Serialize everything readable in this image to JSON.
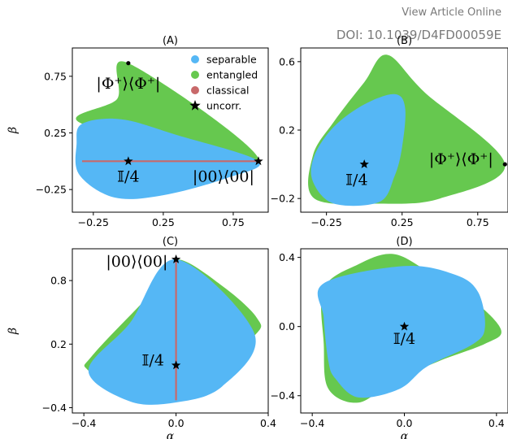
{
  "header": {
    "view_link": "View Article Online",
    "doi": "DOI: 10.1039/D4FD00059E"
  },
  "colors": {
    "separable": "#55b7f5",
    "entangled": "#66c84f",
    "classical": "#c8696a",
    "uncorr": "#000000"
  },
  "legend": {
    "items": [
      {
        "key": "separable",
        "label": "separable",
        "marker": "circle"
      },
      {
        "key": "entangled",
        "label": "entangled",
        "marker": "circle"
      },
      {
        "key": "classical",
        "label": "classical",
        "marker": "circle"
      },
      {
        "key": "uncorr",
        "label": "uncorr.",
        "marker": "star"
      }
    ]
  },
  "chart_data": [
    {
      "id": "A",
      "type": "area",
      "title": "(A)",
      "xlabel": "",
      "ylabel": "β",
      "xlim": [
        -0.4,
        1.0
      ],
      "ylim": [
        -0.45,
        1.0
      ],
      "xticks": [
        -0.25,
        0.25,
        0.75
      ],
      "xtick_labels": [
        "−0.25",
        "0.25",
        "0.75"
      ],
      "yticks": [
        -0.25,
        0.25,
        0.75
      ],
      "ytick_labels": [
        "−0.25",
        "0.25",
        "0.75"
      ],
      "regions": [
        {
          "series": "entangled",
          "points": [
            [
              0.0,
              0.866
            ],
            [
              0.93,
              0.0
            ],
            [
              -0.33,
              0.33
            ],
            [
              -0.08,
              0.55
            ]
          ]
        },
        {
          "series": "separable",
          "points": [
            [
              -0.33,
              0.33
            ],
            [
              -0.05,
              0.37
            ],
            [
              0.35,
              0.23
            ],
            [
              0.93,
              0.0
            ],
            [
              0.7,
              -0.15
            ],
            [
              0.25,
              -0.3
            ],
            [
              -0.1,
              -0.32
            ],
            [
              -0.35,
              -0.12
            ],
            [
              -0.37,
              0.15
            ]
          ]
        }
      ],
      "lines": [
        {
          "series": "classical",
          "points": [
            [
              -0.33,
              0.0
            ],
            [
              0.93,
              0.0
            ]
          ]
        }
      ],
      "stars": [
        [
          0.0,
          0.0
        ],
        [
          0.93,
          0.0
        ]
      ],
      "dots": [
        [
          0.0,
          0.866
        ]
      ],
      "labels": [
        {
          "text": "|Φ⁺⟩⟨Φ⁺|",
          "at": [
            0.0,
            0.64
          ]
        },
        {
          "text": "𝕀/4",
          "at": [
            0.0,
            -0.18
          ]
        },
        {
          "text": "|00⟩⟨00|",
          "at": [
            0.68,
            -0.18
          ]
        }
      ]
    },
    {
      "id": "B",
      "type": "area",
      "title": "(B)",
      "xlabel": "",
      "ylabel": "",
      "xlim": [
        -0.42,
        0.95
      ],
      "ylim": [
        -0.28,
        0.68
      ],
      "xticks": [
        -0.25,
        0.25,
        0.75
      ],
      "xtick_labels": [
        "−0.25",
        "0.25",
        "0.75"
      ],
      "yticks": [
        -0.2,
        0.2,
        0.6
      ],
      "ytick_labels": [
        "−0.2",
        "0.2",
        "0.6"
      ],
      "regions": [
        {
          "series": "entangled",
          "points": [
            [
              0.15,
              0.64
            ],
            [
              0.4,
              0.42
            ],
            [
              0.93,
              0.0
            ],
            [
              0.5,
              -0.2
            ],
            [
              0.1,
              -0.23
            ],
            [
              -0.33,
              -0.2
            ],
            [
              -0.34,
              0.05
            ],
            [
              -0.2,
              0.25
            ],
            [
              0.0,
              0.48
            ]
          ]
        },
        {
          "series": "separable",
          "points": [
            [
              0.2,
              0.41
            ],
            [
              0.27,
              0.33
            ],
            [
              0.25,
              0.1
            ],
            [
              0.2,
              -0.07
            ],
            [
              0.1,
              -0.22
            ],
            [
              -0.2,
              -0.23
            ],
            [
              -0.34,
              -0.1
            ],
            [
              -0.33,
              0.05
            ],
            [
              -0.2,
              0.22
            ],
            [
              0.0,
              0.35
            ]
          ]
        }
      ],
      "lines": [],
      "stars": [
        [
          0.0,
          0.0
        ]
      ],
      "dots": [
        [
          0.93,
          0.0
        ]
      ],
      "labels": [
        {
          "text": "𝕀/4",
          "at": [
            -0.05,
            -0.12
          ]
        },
        {
          "text": "|Φ⁺⟩⟨Φ⁺|",
          "at": [
            0.64,
            0.0
          ]
        }
      ]
    },
    {
      "id": "C",
      "type": "area",
      "title": "(C)",
      "xlabel": "α",
      "ylabel": "β",
      "xlim": [
        -0.45,
        0.4
      ],
      "ylim": [
        -0.45,
        1.1
      ],
      "xticks": [
        -0.4,
        0.0,
        0.4
      ],
      "xtick_labels": [
        "−0.4",
        "0.0",
        "0.4"
      ],
      "yticks": [
        -0.4,
        0.2,
        0.8
      ],
      "ytick_labels": [
        "−0.4",
        "0.2",
        "0.8"
      ],
      "regions": [
        {
          "series": "entangled",
          "points": [
            [
              0.0,
              1.0
            ],
            [
              0.2,
              0.75
            ],
            [
              0.35,
              0.45
            ],
            [
              0.34,
              0.28
            ],
            [
              0.1,
              -0.1
            ],
            [
              -0.2,
              -0.28
            ],
            [
              -0.38,
              -0.05
            ],
            [
              -0.36,
              0.1
            ],
            [
              -0.1,
              0.7
            ]
          ]
        },
        {
          "series": "separable",
          "points": [
            [
              0.0,
              1.0
            ],
            [
              0.34,
              0.3
            ],
            [
              0.2,
              -0.2
            ],
            [
              0.0,
              -0.35
            ],
            [
              -0.2,
              -0.34
            ],
            [
              -0.38,
              -0.05
            ],
            [
              -0.2,
              0.4
            ]
          ]
        }
      ],
      "lines": [
        {
          "series": "classical",
          "points": [
            [
              0.0,
              -0.33
            ],
            [
              0.0,
              1.0
            ]
          ]
        }
      ],
      "stars": [
        [
          0.0,
          1.0
        ],
        [
          0.0,
          0.0
        ]
      ],
      "dots": [],
      "labels": [
        {
          "text": "|00⟩⟨00|",
          "at": [
            -0.17,
            0.93
          ]
        },
        {
          "text": "𝕀/4",
          "at": [
            -0.1,
            0.0
          ]
        }
      ]
    },
    {
      "id": "D",
      "type": "area",
      "title": "(D)",
      "xlabel": "α",
      "ylabel": "",
      "xlim": [
        -0.45,
        0.45
      ],
      "ylim": [
        -0.5,
        0.45
      ],
      "xticks": [
        -0.4,
        0.0,
        0.4
      ],
      "xtick_labels": [
        "−0.4",
        "0.0",
        "0.4"
      ],
      "yticks": [
        -0.4,
        0.0,
        0.4
      ],
      "ytick_labels": [
        "−0.4",
        "0.0",
        "0.4"
      ],
      "regions": [
        {
          "series": "entangled",
          "points": [
            [
              -0.35,
              0.22
            ],
            [
              -0.2,
              0.36
            ],
            [
              -0.05,
              0.42
            ],
            [
              0.1,
              0.32
            ],
            [
              0.3,
              0.15
            ],
            [
              0.42,
              -0.02
            ],
            [
              0.35,
              -0.1
            ],
            [
              0.15,
              -0.2
            ],
            [
              -0.05,
              -0.32
            ],
            [
              -0.2,
              -0.44
            ],
            [
              -0.33,
              -0.36
            ],
            [
              -0.35,
              -0.1
            ]
          ]
        },
        {
          "series": "separable",
          "points": [
            [
              -0.35,
              0.25
            ],
            [
              0.0,
              0.35
            ],
            [
              0.22,
              0.3
            ],
            [
              0.32,
              0.2
            ],
            [
              0.35,
              0.0
            ],
            [
              0.3,
              -0.1
            ],
            [
              0.1,
              -0.23
            ],
            [
              -0.02,
              -0.36
            ],
            [
              -0.2,
              -0.41
            ],
            [
              -0.3,
              -0.3
            ],
            [
              -0.33,
              -0.2
            ],
            [
              -0.35,
              0.05
            ]
          ]
        }
      ],
      "lines": [],
      "stars": [
        [
          0.0,
          0.0
        ]
      ],
      "dots": [],
      "labels": [
        {
          "text": "𝕀/4",
          "at": [
            0.0,
            -0.1
          ]
        }
      ]
    }
  ]
}
